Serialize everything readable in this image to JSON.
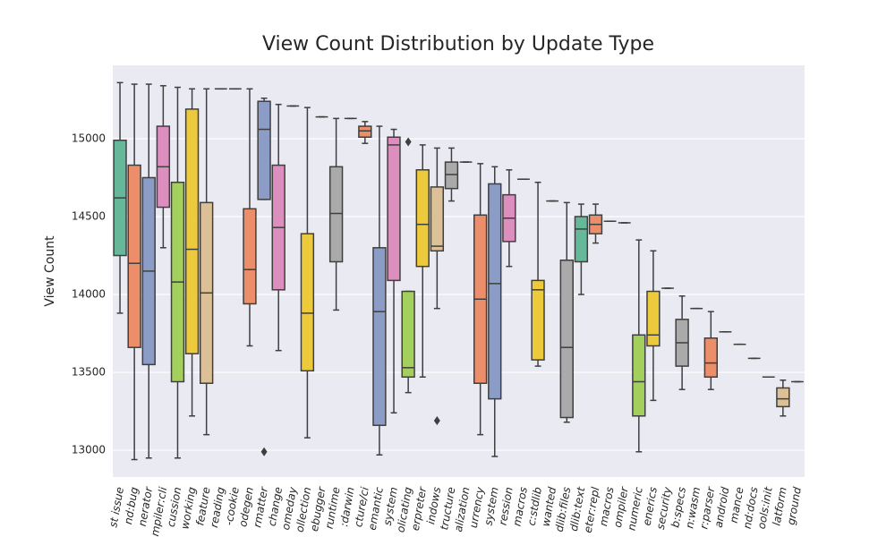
{
  "chart_data": {
    "type": "box",
    "title": "View Count Distribution by Update Type",
    "y_label": "View Count",
    "categories": [
      "st issue",
      "nd:bug",
      "nerator",
      "mpiler:cli",
      "cussion",
      "working",
      "feature",
      "reading",
      "-cookie",
      "odegen",
      "rmatter",
      "change",
      "omeday",
      "ollection",
      "ebugger",
      "runtime",
      ":darwin",
      "cture/ci",
      "emantic",
      "system",
      "olicating",
      "erpreter",
      "indows",
      "tructure",
      "alization",
      "urrency",
      "system",
      "ression",
      "macros",
      "c:stdlib",
      "wanted",
      "dlib:files",
      "dlib:text",
      "eter:repl",
      "macros",
      "ompiler",
      "numeric",
      "enerics",
      "security",
      "b:specs",
      "n:wasm",
      "r:parser",
      "android",
      "mance",
      "nd:docs",
      "ools:init",
      "latform",
      "ground"
    ],
    "whishi": [
      15360,
      15350,
      15350,
      15340,
      15330,
      15320,
      15320,
      15320,
      15320,
      15320,
      15260,
      15220,
      15210,
      15200,
      15140,
      15130,
      15130,
      15110,
      15080,
      15060,
      14020,
      14960,
      14940,
      14940,
      14850,
      14840,
      14820,
      14800,
      14740,
      14720,
      14600,
      14590,
      14580,
      14580,
      14470,
      14460,
      14350,
      14280,
      14040,
      13990,
      13910,
      13890,
      13760,
      13680,
      13590,
      13470,
      13450,
      13440
    ],
    "q3": [
      14990,
      14830,
      14750,
      15080,
      14720,
      15190,
      14590,
      15320,
      15320,
      14550,
      15240,
      14830,
      15210,
      14390,
      15140,
      14820,
      15130,
      15080,
      14300,
      15010,
      14020,
      14800,
      14690,
      14850,
      14850,
      14510,
      14710,
      14640,
      14740,
      14090,
      14600,
      14220,
      14500,
      14510,
      14470,
      14460,
      13740,
      14020,
      14040,
      13840,
      13910,
      13720,
      13760,
      13680,
      13590,
      13470,
      13400,
      13440
    ],
    "median": [
      14620,
      14200,
      14150,
      14820,
      14080,
      14290,
      14010,
      15320,
      15320,
      14160,
      15060,
      14430,
      15210,
      13880,
      15140,
      14520,
      15130,
      15050,
      13890,
      14960,
      13530,
      14450,
      14310,
      14770,
      14850,
      13970,
      14070,
      14490,
      14740,
      14030,
      14600,
      13660,
      14420,
      14450,
      14470,
      14460,
      13440,
      13740,
      14040,
      13690,
      13910,
      13560,
      13760,
      13680,
      13590,
      13470,
      13330,
      13440
    ],
    "q1": [
      14250,
      13660,
      13550,
      14560,
      13440,
      13620,
      13430,
      15320,
      15320,
      13940,
      14610,
      14030,
      15210,
      13510,
      15140,
      14210,
      15130,
      15010,
      13160,
      14090,
      13470,
      14180,
      14280,
      14680,
      14850,
      13430,
      13330,
      14340,
      14740,
      13580,
      14600,
      13210,
      14210,
      14390,
      14470,
      14460,
      13220,
      13670,
      14040,
      13540,
      13910,
      13470,
      13760,
      13680,
      13590,
      13470,
      13280,
      13440
    ],
    "whislo": [
      13880,
      12940,
      12950,
      14300,
      12950,
      13220,
      13100,
      15320,
      15320,
      13670,
      14610,
      13640,
      15210,
      13080,
      15140,
      13900,
      15130,
      14970,
      12970,
      13240,
      13370,
      13470,
      13910,
      14600,
      14850,
      13100,
      12960,
      14180,
      14740,
      13540,
      14600,
      13180,
      14000,
      14330,
      14470,
      14460,
      12990,
      13320,
      14040,
      13390,
      13910,
      13390,
      13760,
      13680,
      13590,
      13470,
      13220,
      13440
    ],
    "fliers": [
      [],
      [],
      [],
      [],
      [],
      [],
      [],
      [],
      [],
      [],
      [
        12990
      ],
      [],
      [],
      [],
      [],
      [],
      [],
      [],
      [],
      [],
      [
        14980
      ],
      [],
      [
        13190
      ],
      [],
      [],
      [],
      [],
      [],
      [],
      [],
      [],
      [],
      [],
      [],
      [],
      [],
      [],
      [],
      [],
      [],
      [],
      [],
      [],
      [],
      [],
      [],
      [],
      []
    ],
    "palette": [
      "#66b89a",
      "#eb8e69",
      "#8b9dc6",
      "#dc8fbf",
      "#a3cf5c",
      "#ecca3c",
      "#ddc196",
      "#aaaaaa"
    ],
    "ylim": [
      12828,
      15471
    ],
    "yticks": [
      13000,
      13500,
      14000,
      14500,
      15000
    ],
    "grid": true
  }
}
